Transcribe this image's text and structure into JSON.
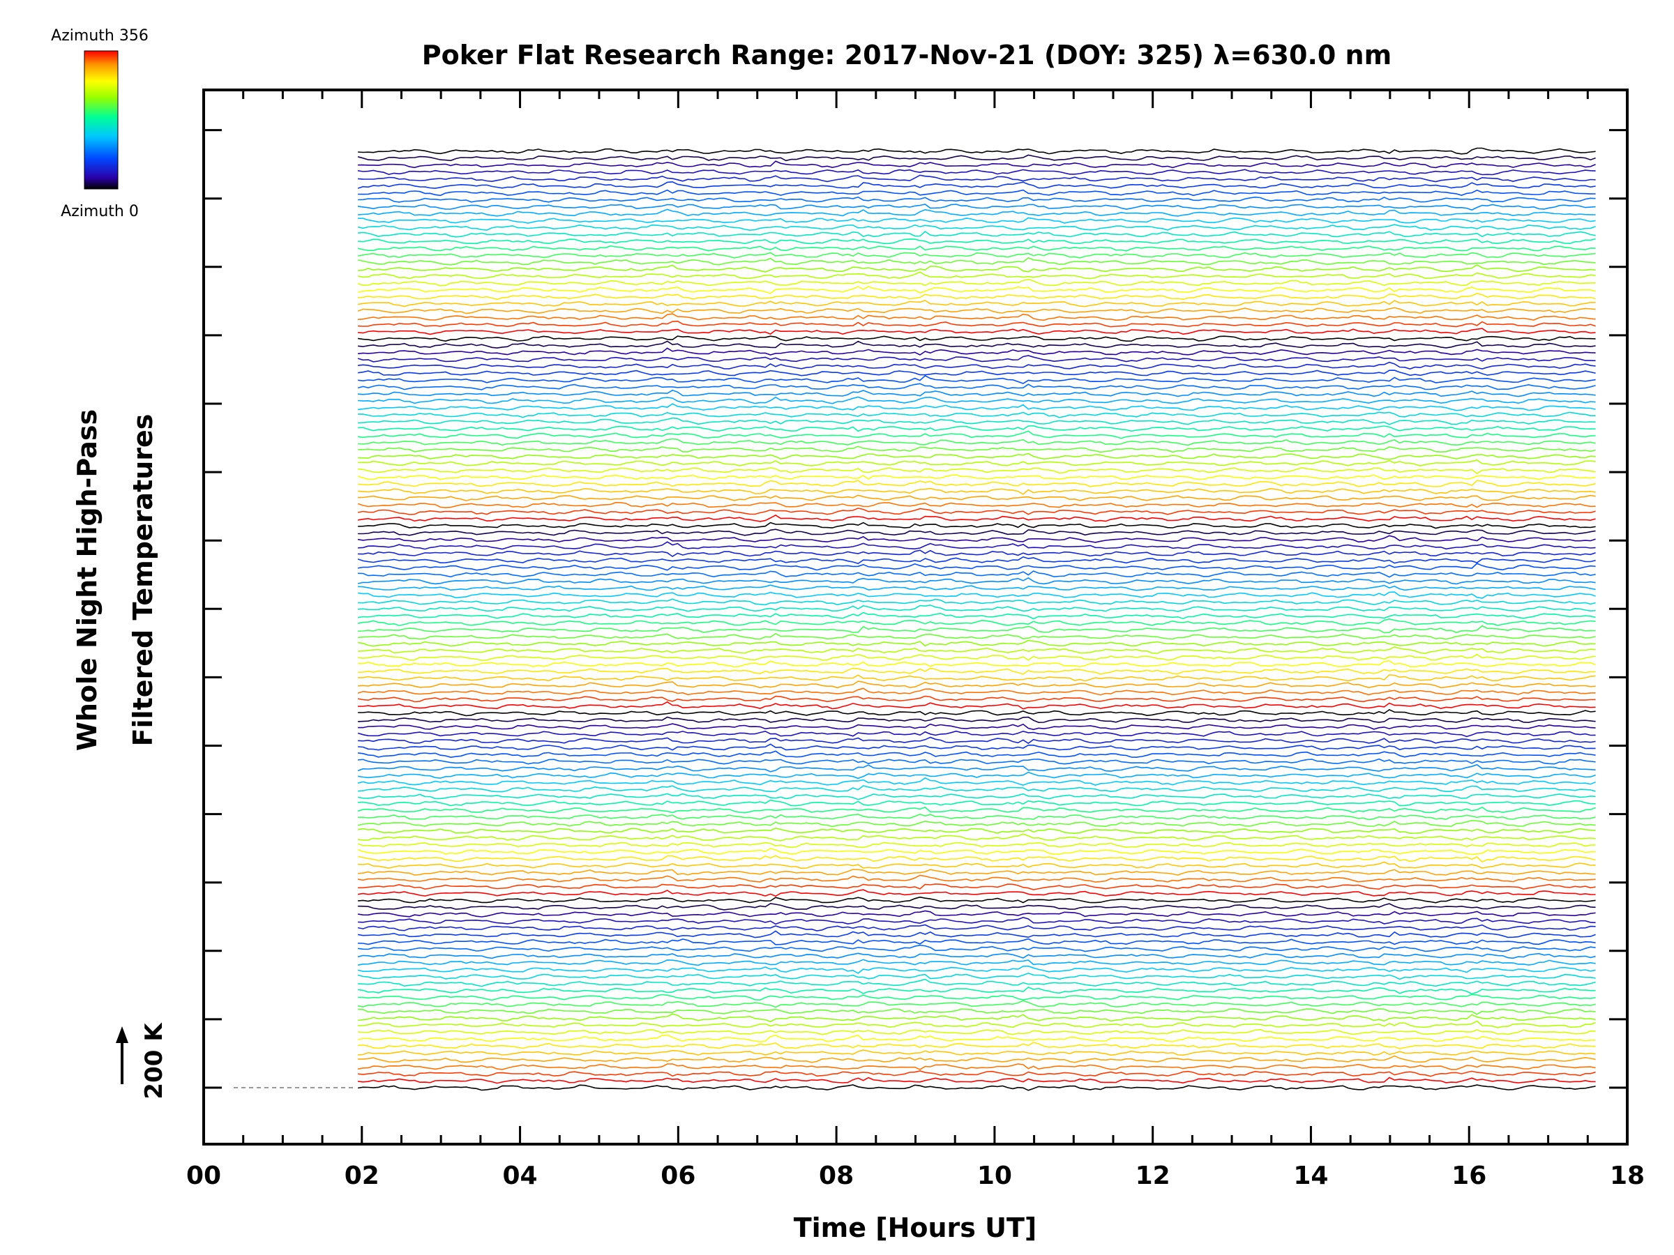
{
  "chart_data": {
    "type": "line",
    "title": "Poker Flat Research Range: 2017-Nov-21 (DOY: 325) λ=630.0 nm",
    "xlabel": "Time [Hours UT]",
    "ylabel_line1": "Whole Night High-Pass",
    "ylabel_line2": "Filtered Temperatures",
    "xlim": [
      0,
      18
    ],
    "x_tick_labels": [
      "00",
      "02",
      "04",
      "06",
      "08",
      "10",
      "12",
      "14",
      "16",
      "18"
    ],
    "data_time_range": [
      1.95,
      17.6
    ],
    "trace_count": 136,
    "trace_offset_K": 20,
    "scale_label": "200 K",
    "colorbar": {
      "top_label": "Azimuth 356",
      "bottom_label": "Azimuth 0",
      "min": 0,
      "max": 356,
      "colors": [
        "#000000",
        "#2a00a8",
        "#0048ff",
        "#00c8ff",
        "#00ff96",
        "#96ff00",
        "#ffff00",
        "#ff9600",
        "#ff0000"
      ]
    },
    "grid": false,
    "legend": "none"
  }
}
